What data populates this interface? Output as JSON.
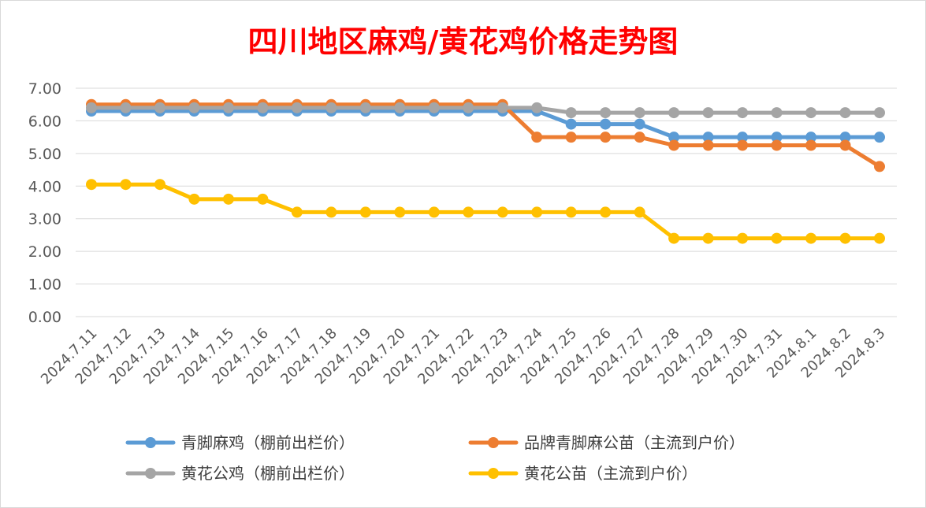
{
  "chart_data": {
    "type": "line",
    "title": "四川地区麻鸡/黄花鸡价格走势图",
    "xlabel": "",
    "ylabel": "",
    "ylim": [
      0,
      7
    ],
    "y_ticks": [
      "0.00",
      "1.00",
      "2.00",
      "3.00",
      "4.00",
      "5.00",
      "6.00",
      "7.00"
    ],
    "grid": true,
    "legend_position": "bottom",
    "categories": [
      "2024.7.11",
      "2024.7.12",
      "2024.7.13",
      "2024.7.14",
      "2024.7.15",
      "2024.7.16",
      "2024.7.17",
      "2024.7.18",
      "2024.7.19",
      "2024.7.20",
      "2024.7.21",
      "2024.7.22",
      "2024.7.23",
      "2024.7.24",
      "2024.7.25",
      "2024.7.26",
      "2024.7.27",
      "2024.7.28",
      "2024.7.29",
      "2024.7.30",
      "2024.7.31",
      "2024.8.1",
      "2024.8.2",
      "2024.8.3"
    ],
    "series": [
      {
        "name": "青脚麻鸡（棚前出栏价）",
        "color": "#5b9bd5",
        "values": [
          6.3,
          6.3,
          6.3,
          6.3,
          6.3,
          6.3,
          6.3,
          6.3,
          6.3,
          6.3,
          6.3,
          6.3,
          6.3,
          6.3,
          5.9,
          5.9,
          5.9,
          5.5,
          5.5,
          5.5,
          5.5,
          5.5,
          5.5,
          5.5
        ]
      },
      {
        "name": "品牌青脚麻公苗（主流到户价）",
        "color": "#ed7d31",
        "values": [
          6.5,
          6.5,
          6.5,
          6.5,
          6.5,
          6.5,
          6.5,
          6.5,
          6.5,
          6.5,
          6.5,
          6.5,
          6.5,
          5.5,
          5.5,
          5.5,
          5.5,
          5.25,
          5.25,
          5.25,
          5.25,
          5.25,
          5.25,
          4.6
        ]
      },
      {
        "name": "黄花公鸡（棚前出栏价）",
        "color": "#a5a5a5",
        "values": [
          6.4,
          6.4,
          6.4,
          6.4,
          6.4,
          6.4,
          6.4,
          6.4,
          6.4,
          6.4,
          6.4,
          6.4,
          6.4,
          6.4,
          6.25,
          6.25,
          6.25,
          6.25,
          6.25,
          6.25,
          6.25,
          6.25,
          6.25,
          6.25
        ]
      },
      {
        "name": "黄花公苗（主流到户价）",
        "color": "#ffc000",
        "values": [
          4.05,
          4.05,
          4.05,
          3.6,
          3.6,
          3.6,
          3.2,
          3.2,
          3.2,
          3.2,
          3.2,
          3.2,
          3.2,
          3.2,
          3.2,
          3.2,
          3.2,
          2.4,
          2.4,
          2.4,
          2.4,
          2.4,
          2.4,
          2.4
        ]
      }
    ]
  }
}
